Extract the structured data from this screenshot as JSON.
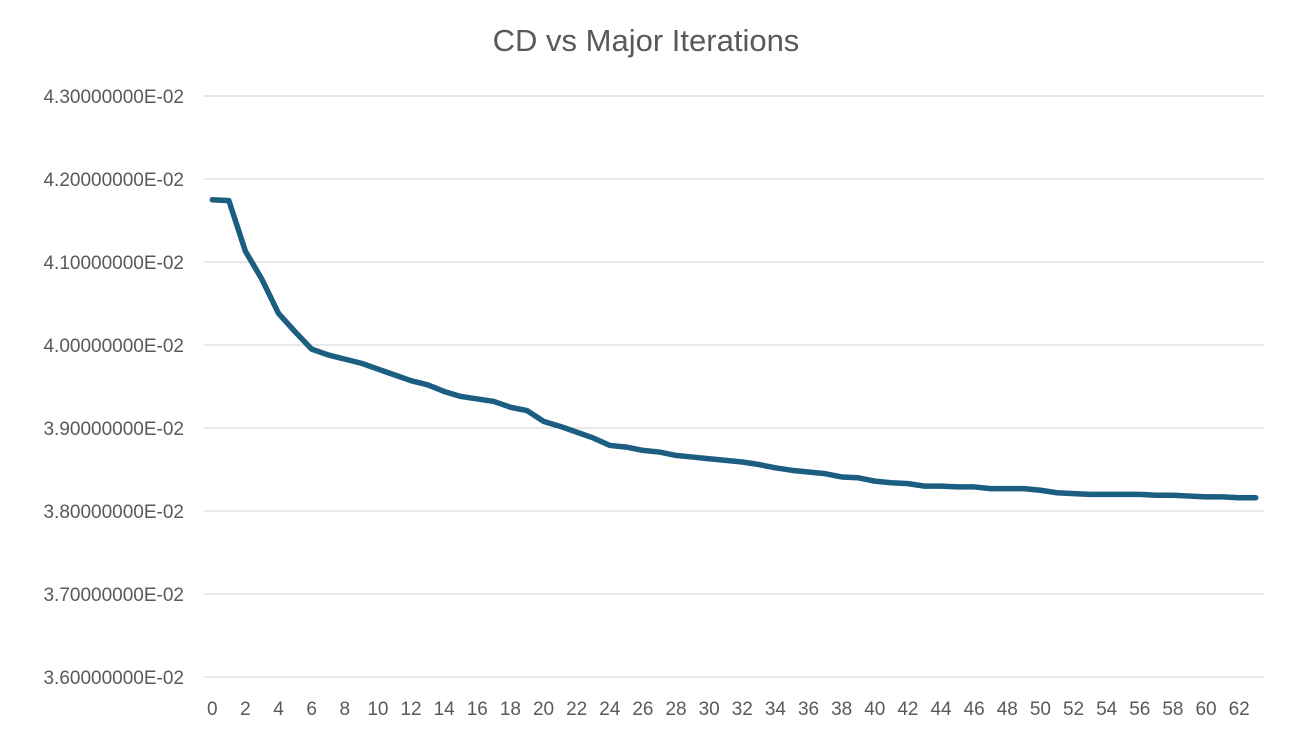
{
  "chart_data": {
    "type": "line",
    "title": "CD vs Major Iterations",
    "xlabel": "",
    "ylabel": "",
    "grid": "horizontal",
    "legend": "none",
    "ylim": [
      0.036,
      0.043
    ],
    "y_ticks": [
      {
        "value": 0.043,
        "label": "4.30000000E-02"
      },
      {
        "value": 0.042,
        "label": "4.20000000E-02"
      },
      {
        "value": 0.041,
        "label": "4.10000000E-02"
      },
      {
        "value": 0.04,
        "label": "4.00000000E-02"
      },
      {
        "value": 0.039,
        "label": "3.90000000E-02"
      },
      {
        "value": 0.038,
        "label": "3.80000000E-02"
      },
      {
        "value": 0.037,
        "label": "3.70000000E-02"
      },
      {
        "value": 0.036,
        "label": "3.60000000E-02"
      }
    ],
    "x_tick_labels": [
      "0",
      "2",
      "4",
      "6",
      "8",
      "10",
      "12",
      "14",
      "16",
      "18",
      "20",
      "22",
      "24",
      "26",
      "28",
      "30",
      "32",
      "34",
      "36",
      "38",
      "40",
      "42",
      "44",
      "46",
      "48",
      "50",
      "52",
      "54",
      "56",
      "58",
      "60",
      "62"
    ],
    "series": [
      {
        "name": "CD",
        "color": "#1b5e82",
        "x": [
          0,
          1,
          2,
          3,
          4,
          5,
          6,
          7,
          8,
          9,
          10,
          11,
          12,
          13,
          14,
          15,
          16,
          17,
          18,
          19,
          20,
          21,
          22,
          23,
          24,
          25,
          26,
          27,
          28,
          29,
          30,
          31,
          32,
          33,
          34,
          35,
          36,
          37,
          38,
          39,
          40,
          41,
          42,
          43,
          44,
          45,
          46,
          47,
          48,
          49,
          50,
          51,
          52,
          53,
          54,
          55,
          56,
          57,
          58,
          59,
          60,
          61,
          62,
          63
        ],
        "values": [
          0.04175,
          0.04174,
          0.04113,
          0.04079,
          0.04038,
          0.04016,
          0.03995,
          0.03988,
          0.03983,
          0.03978,
          0.03971,
          0.03964,
          0.03957,
          0.03952,
          0.03944,
          0.03938,
          0.03935,
          0.03932,
          0.03925,
          0.03921,
          0.03908,
          0.03902,
          0.03895,
          0.03888,
          0.03879,
          0.03877,
          0.03873,
          0.03871,
          0.03867,
          0.03865,
          0.03863,
          0.03861,
          0.03859,
          0.03856,
          0.03852,
          0.03849,
          0.03847,
          0.03845,
          0.03841,
          0.0384,
          0.03836,
          0.03834,
          0.03833,
          0.0383,
          0.0383,
          0.03829,
          0.03829,
          0.03827,
          0.03827,
          0.03827,
          0.03825,
          0.03822,
          0.03821,
          0.0382,
          0.0382,
          0.0382,
          0.0382,
          0.03819,
          0.03819,
          0.03818,
          0.03817,
          0.03817,
          0.03816,
          0.03816
        ]
      }
    ]
  }
}
